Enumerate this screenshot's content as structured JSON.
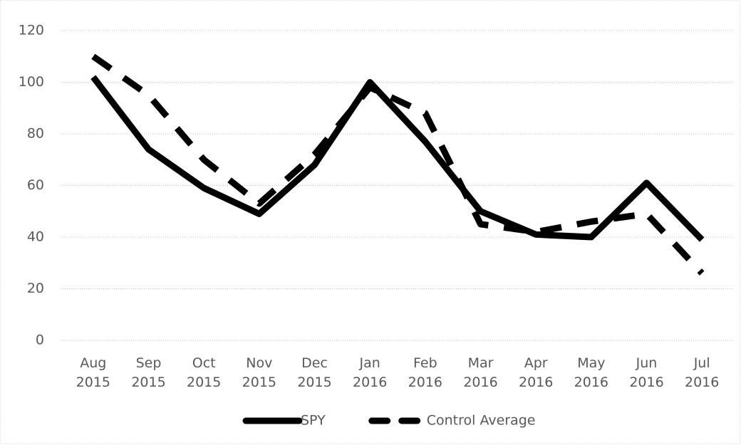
{
  "chart_data": {
    "type": "line",
    "categories": [
      "Aug 2015",
      "Sep 2015",
      "Oct 2015",
      "Nov 2015",
      "Dec 2015",
      "Jan 2016",
      "Feb 2016",
      "Mar 2016",
      "Apr 2016",
      "May 2016",
      "Jun 2016",
      "Jul 2016"
    ],
    "series": [
      {
        "name": "SPY",
        "color": "#000000",
        "dash": false,
        "values": [
          102,
          74,
          59,
          49,
          68,
          100,
          77,
          50,
          41,
          40,
          61,
          39
        ]
      },
      {
        "name": "Control Average",
        "color": "#000000",
        "dash": true,
        "values": [
          110,
          95,
          70,
          53,
          72,
          98,
          88,
          45,
          42,
          46,
          49,
          26
        ]
      }
    ],
    "ylim": [
      0,
      120
    ],
    "yticks": [
      0,
      20,
      40,
      60,
      80,
      100,
      120
    ],
    "grid": true,
    "legend": "bottom"
  }
}
